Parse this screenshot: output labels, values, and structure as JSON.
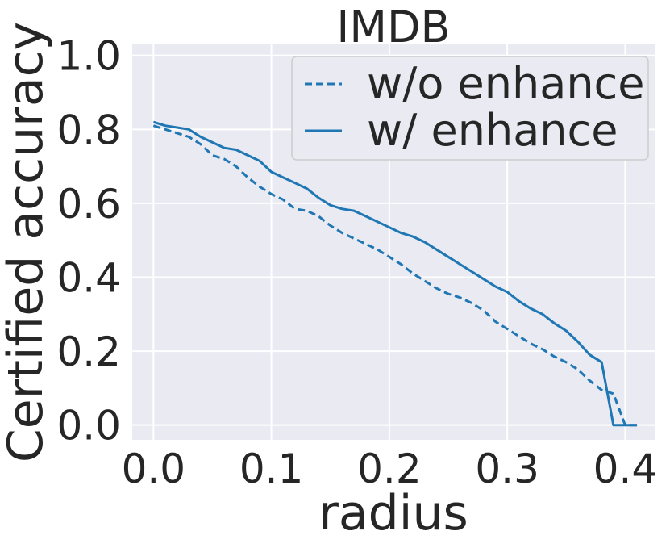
{
  "chart_data": {
    "type": "line",
    "title": "IMDB",
    "xlabel": "radius",
    "ylabel": "Certified accuracy",
    "xlim": [
      -0.018,
      0.425
    ],
    "ylim": [
      -0.04,
      1.03
    ],
    "xticks": [
      "0.0",
      "0.1",
      "0.2",
      "0.3",
      "0.4"
    ],
    "xtick_values": [
      0.0,
      0.1,
      0.2,
      0.3,
      0.4
    ],
    "yticks": [
      "0.0",
      "0.2",
      "0.4",
      "0.6",
      "0.8",
      "1.0"
    ],
    "ytick_values": [
      0.0,
      0.2,
      0.4,
      0.6,
      0.8,
      1.0
    ],
    "grid": true,
    "legend_position": "top-right",
    "colors": {
      "background": "#eaeaf2",
      "grid": "#ffffff",
      "line": "#1f77b4",
      "text": "#262626"
    },
    "series": [
      {
        "name": "w/o enhance",
        "style": "dashed",
        "x": [
          0.0,
          0.01,
          0.02,
          0.03,
          0.04,
          0.05,
          0.06,
          0.07,
          0.08,
          0.09,
          0.1,
          0.11,
          0.12,
          0.13,
          0.14,
          0.15,
          0.16,
          0.17,
          0.18,
          0.19,
          0.2,
          0.21,
          0.22,
          0.23,
          0.24,
          0.25,
          0.26,
          0.27,
          0.28,
          0.29,
          0.3,
          0.31,
          0.32,
          0.33,
          0.34,
          0.35,
          0.36,
          0.37,
          0.38,
          0.39,
          0.4,
          0.41
        ],
        "y": [
          0.81,
          0.8,
          0.79,
          0.78,
          0.76,
          0.73,
          0.72,
          0.7,
          0.67,
          0.645,
          0.625,
          0.61,
          0.585,
          0.58,
          0.565,
          0.54,
          0.52,
          0.505,
          0.49,
          0.475,
          0.455,
          0.435,
          0.41,
          0.39,
          0.37,
          0.355,
          0.345,
          0.33,
          0.31,
          0.28,
          0.26,
          0.24,
          0.22,
          0.205,
          0.185,
          0.17,
          0.15,
          0.12,
          0.095,
          0.085,
          0.0,
          0.0
        ]
      },
      {
        "name": "w/ enhance",
        "style": "solid",
        "x": [
          0.0,
          0.01,
          0.02,
          0.03,
          0.04,
          0.05,
          0.06,
          0.07,
          0.08,
          0.09,
          0.1,
          0.11,
          0.12,
          0.13,
          0.14,
          0.15,
          0.16,
          0.17,
          0.18,
          0.19,
          0.2,
          0.21,
          0.22,
          0.23,
          0.24,
          0.25,
          0.26,
          0.27,
          0.28,
          0.29,
          0.3,
          0.31,
          0.32,
          0.33,
          0.34,
          0.35,
          0.36,
          0.37,
          0.38,
          0.39,
          0.4,
          0.41
        ],
        "y": [
          0.82,
          0.81,
          0.805,
          0.8,
          0.78,
          0.765,
          0.75,
          0.745,
          0.73,
          0.715,
          0.685,
          0.67,
          0.655,
          0.64,
          0.615,
          0.595,
          0.585,
          0.58,
          0.565,
          0.55,
          0.535,
          0.52,
          0.51,
          0.495,
          0.475,
          0.455,
          0.435,
          0.415,
          0.395,
          0.375,
          0.36,
          0.335,
          0.315,
          0.3,
          0.275,
          0.255,
          0.225,
          0.19,
          0.17,
          0.0,
          0.0,
          0.0
        ]
      }
    ]
  }
}
